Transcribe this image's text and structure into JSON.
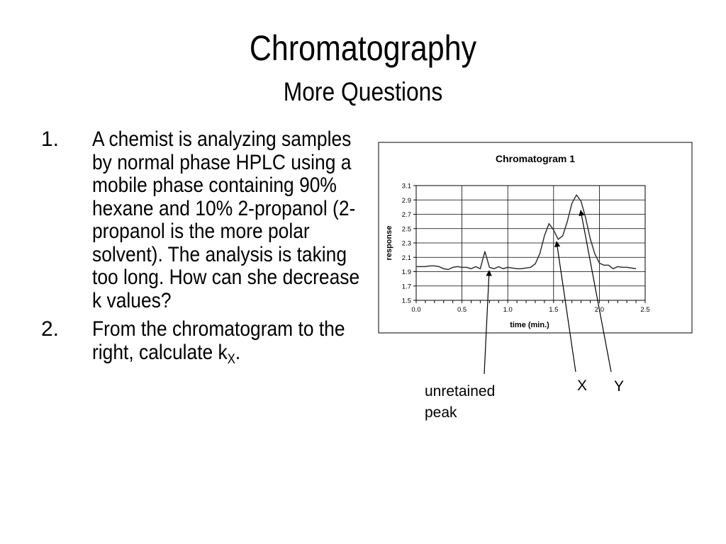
{
  "slide": {
    "title": "Chromatography",
    "subtitle": "More Questions"
  },
  "questions": [
    {
      "number": "1.",
      "text": "A chemist is analyzing samples by normal phase HPLC using a mobile phase containing 90% hexane and 10% 2-propanol (2-propanol is the more polar solvent). The analysis is taking too long.  How can she decrease k values?"
    },
    {
      "number": "2.",
      "text": "From the chromatogram to the right, calculate k",
      "subscript": "X",
      "suffix": "."
    }
  ],
  "annotations": {
    "unretained_line1": "unretained",
    "unretained_line2": "peak",
    "x_label": "X",
    "y_label": "Y"
  },
  "chart_data": {
    "type": "line",
    "title": "Chromatogram 1",
    "xlabel": "time (min.)",
    "ylabel": "response",
    "xlim": [
      0.0,
      2.5
    ],
    "ylim": [
      1.5,
      3.1
    ],
    "xticks": [
      "0.0",
      "0.5",
      "1.0",
      "1.5",
      "2.0",
      "2.5"
    ],
    "yticks": [
      "1.5",
      "1.7",
      "1.9",
      "2.1",
      "2.3",
      "2.5",
      "2.7",
      "2.9",
      "3.1"
    ],
    "grid": true,
    "legend": "none",
    "series": [
      {
        "x": [
          0.0,
          0.05,
          0.1,
          0.15,
          0.2,
          0.25,
          0.3,
          0.35,
          0.4,
          0.45,
          0.5,
          0.55,
          0.6,
          0.65,
          0.7,
          0.75,
          0.8,
          0.85,
          0.9,
          0.95,
          1.0,
          1.05,
          1.1,
          1.15,
          1.2,
          1.25,
          1.3,
          1.35,
          1.4,
          1.45,
          1.5,
          1.55,
          1.6,
          1.65,
          1.7,
          1.75,
          1.8,
          1.85,
          1.9,
          1.95,
          2.0,
          2.05,
          2.1,
          2.15,
          2.2,
          2.25,
          2.3,
          2.35,
          2.4
        ],
        "y": [
          1.97,
          1.97,
          1.97,
          1.98,
          1.98,
          1.97,
          1.94,
          1.93,
          1.96,
          1.97,
          1.96,
          1.96,
          1.94,
          1.97,
          1.94,
          2.18,
          1.96,
          1.94,
          1.97,
          1.94,
          1.96,
          1.95,
          1.94,
          1.94,
          1.95,
          1.96,
          2.01,
          2.15,
          2.4,
          2.57,
          2.48,
          2.35,
          2.4,
          2.6,
          2.85,
          2.97,
          2.88,
          2.65,
          2.36,
          2.15,
          2.02,
          1.99,
          1.99,
          1.94,
          1.97,
          1.96,
          1.96,
          1.95,
          1.94
        ]
      }
    ]
  }
}
